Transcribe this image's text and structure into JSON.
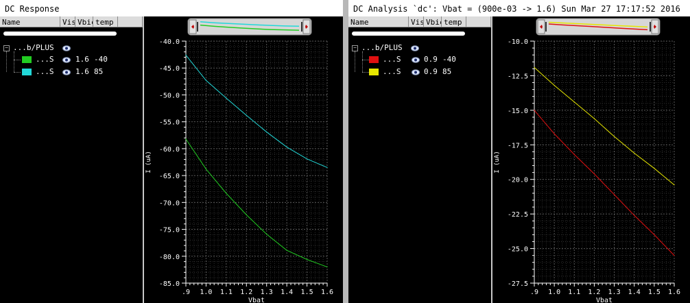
{
  "panes": [
    {
      "title": "DC Response",
      "headers": [
        "Name",
        "Vis",
        "Vbiс",
        "temp"
      ],
      "tree_root": "...b/PLUS",
      "signals": [
        {
          "name": "...S",
          "vbat": "1.6",
          "temp": "-40",
          "color": "#22cc22"
        },
        {
          "name": "...S",
          "vbat": "1.6",
          "temp": "85",
          "color": "#22d8d8"
        }
      ]
    },
    {
      "title": "DC Analysis `dc': Vbat = (900e-03 -> 1.6)  Sun Mar 27 17:17:52 2016",
      "headers": [
        "Name",
        "Vis",
        "Vbiс",
        "temp"
      ],
      "tree_root": "...b/PLUS",
      "signals": [
        {
          "name": "...S",
          "vbat": "0.9",
          "temp": "-40",
          "color": "#e01010"
        },
        {
          "name": "...S",
          "vbat": "0.9",
          "temp": "85",
          "color": "#e6e600"
        }
      ]
    }
  ],
  "chart_data": [
    {
      "type": "line",
      "xlabel": "Vbat",
      "ylabel": "I (uA)",
      "xlim": [
        0.9,
        1.6
      ],
      "ylim": [
        -85.0,
        -40.0
      ],
      "xticks": [
        ".9",
        "1.0",
        "1.1",
        "1.2",
        "1.3",
        "1.4",
        "1.5",
        "1.6"
      ],
      "yticks": [
        "-40.0",
        "-45.0",
        "-50.0",
        "-55.0",
        "-60.0",
        "-65.0",
        "-70.0",
        "-75.0",
        "-80.0",
        "-85.0"
      ],
      "grid": true,
      "series": [
        {
          "name": "1.6 -40",
          "color": "#22cc22",
          "x": [
            0.9,
            1.0,
            1.1,
            1.2,
            1.3,
            1.4,
            1.5,
            1.6
          ],
          "y": [
            -58.2,
            -63.8,
            -68.3,
            -72.3,
            -75.9,
            -78.9,
            -80.6,
            -82.0
          ]
        },
        {
          "name": "1.6 85",
          "color": "#22d8d8",
          "x": [
            0.9,
            1.0,
            1.1,
            1.2,
            1.3,
            1.4,
            1.5,
            1.6
          ],
          "y": [
            -42.6,
            -47.3,
            -50.6,
            -53.8,
            -56.9,
            -59.7,
            -61.9,
            -63.5
          ]
        }
      ]
    },
    {
      "type": "line",
      "xlabel": "Vbat",
      "ylabel": "I (uA)",
      "xlim": [
        0.9,
        1.6
      ],
      "ylim": [
        -27.5,
        -10.0
      ],
      "xticks": [
        ".9",
        "1.0",
        "1.1",
        "1.2",
        "1.3",
        "1.4",
        "1.5",
        "1.6"
      ],
      "yticks": [
        "-10.0",
        "-12.5",
        "-15.0",
        "-17.5",
        "-20.0",
        "-22.5",
        "-25.0",
        "-27.5"
      ],
      "grid": true,
      "series": [
        {
          "name": "0.9 -40",
          "color": "#e01010",
          "x": [
            0.9,
            1.0,
            1.1,
            1.2,
            1.3,
            1.4,
            1.5,
            1.6
          ],
          "y": [
            -15.0,
            -16.7,
            -18.2,
            -19.6,
            -21.1,
            -22.6,
            -24.0,
            -25.5
          ]
        },
        {
          "name": "0.9 85",
          "color": "#e6e600",
          "x": [
            0.9,
            1.0,
            1.1,
            1.2,
            1.3,
            1.4,
            1.5,
            1.6
          ],
          "y": [
            -11.9,
            -13.2,
            -14.4,
            -15.6,
            -16.9,
            -18.1,
            -19.2,
            -20.4
          ]
        }
      ]
    }
  ]
}
